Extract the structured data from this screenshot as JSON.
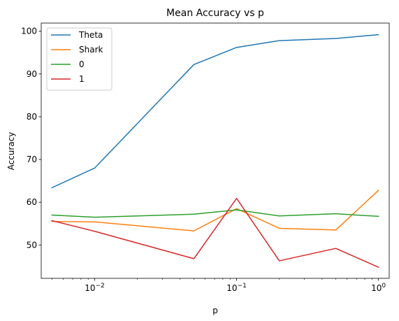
{
  "chart_data": {
    "type": "line",
    "title": "Mean Accuracy vs p",
    "xlabel": "p",
    "ylabel": "Accuracy",
    "xscale": "log",
    "xlim": [
      0.0042,
      1.19
    ],
    "ylim": [
      42.2,
      101.9
    ],
    "x": [
      0.005,
      0.01,
      0.05,
      0.1,
      0.2,
      0.5,
      1.0
    ],
    "x_ticks": [
      {
        "value": 0.01,
        "label": "10−2"
      },
      {
        "value": 0.1,
        "label": "10−1"
      },
      {
        "value": 1.0,
        "label": "100"
      }
    ],
    "y_ticks": [
      50,
      60,
      70,
      80,
      90,
      100
    ],
    "grid": false,
    "legend_position": "top-left",
    "series": [
      {
        "name": "Theta",
        "color": "#1f77b4",
        "values": [
          63.4,
          68.0,
          92.2,
          96.2,
          97.8,
          98.3,
          99.2
        ]
      },
      {
        "name": "Shark",
        "color": "#ff7f0e",
        "values": [
          55.5,
          55.4,
          53.3,
          58.5,
          53.9,
          53.5,
          62.8
        ]
      },
      {
        "name": "0",
        "color": "#2ca02c",
        "values": [
          57.0,
          56.5,
          57.2,
          58.2,
          56.8,
          57.3,
          56.7
        ]
      },
      {
        "name": "1",
        "color": "#d62728",
        "values": [
          55.7,
          53.2,
          46.8,
          60.9,
          46.3,
          49.2,
          44.8
        ]
      }
    ]
  }
}
